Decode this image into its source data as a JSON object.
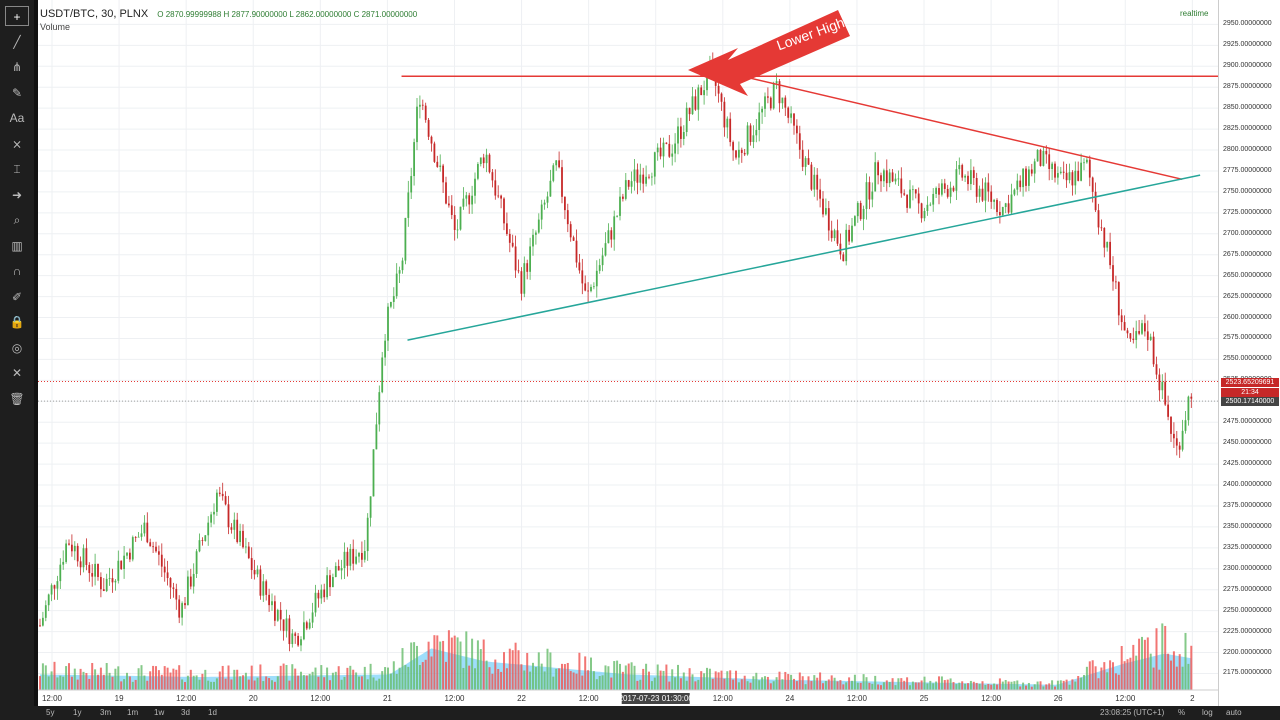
{
  "header": {
    "symbol": "USDT/BTC, 30, PLNX",
    "ohlc": "O 2870.99999988 H 2877.90000000 L 2862.00000000 C 2871.00000000",
    "volume_label": "Volume",
    "realtime_label": "realtime"
  },
  "annotation": {
    "text": "Lower High",
    "color": "#e53935"
  },
  "price_labels": {
    "current": "2523.65209691",
    "countdown": "21:34",
    "crosshair": "2500.17140000"
  },
  "bottom": {
    "ranges": [
      "5y",
      "1y",
      "3m",
      "1m",
      "1w",
      "3d",
      "1d"
    ],
    "clock": "23:08:25 (UTC+1)",
    "options": [
      "%",
      "log",
      "auto"
    ]
  },
  "toolbar_icons": [
    "crosshair-icon",
    "trend-line-icon",
    "pitchfork-icon",
    "brush-icon",
    "text-icon",
    "pattern-icon",
    "measure-icon",
    "arrow-icon",
    "zoom-icon",
    "bars-icon",
    "magnet-icon",
    "pencil-icon",
    "lock-icon",
    "eye-icon",
    "wrench-icon",
    "trash-icon"
  ],
  "chart_data": {
    "type": "candlestick",
    "title": "",
    "y_ticks": [
      2175,
      2200,
      2225,
      2250,
      2275,
      2300,
      2325,
      2350,
      2375,
      2400,
      2425,
      2450,
      2475,
      2500,
      2525,
      2550,
      2575,
      2600,
      2625,
      2650,
      2675,
      2700,
      2725,
      2750,
      2775,
      2800,
      2825,
      2850,
      2875,
      2900,
      2925,
      2950
    ],
    "y_tick_format": "2950.00000000",
    "x_ticks": [
      "12:00",
      "19",
      "12:00",
      "20",
      "12:00",
      "21",
      "12:00",
      "22",
      "12:00",
      "2017-07-23 01:30:00",
      "12:00",
      "24",
      "12:00",
      "25",
      "12:00",
      "26",
      "12:00",
      "2"
    ],
    "x_range": [
      "2017-07-18 09:00",
      "2017-07-26 15:00"
    ],
    "ylim": [
      2160,
      2960
    ],
    "price_path": [
      [
        "2017-07-18 09:00",
        2225
      ],
      [
        "2017-07-18 14:00",
        2335
      ],
      [
        "2017-07-18 20:00",
        2280
      ],
      [
        "2017-07-19 03:00",
        2350
      ],
      [
        "2017-07-19 09:00",
        2250
      ],
      [
        "2017-07-19 15:00",
        2390
      ],
      [
        "2017-07-19 22:00",
        2285
      ],
      [
        "2017-07-20 04:00",
        2215
      ],
      [
        "2017-07-20 10:00",
        2290
      ],
      [
        "2017-07-20 16:00",
        2330
      ],
      [
        "2017-07-20 19:00",
        2580
      ],
      [
        "2017-07-20 22:00",
        2660
      ],
      [
        "2017-07-21 01:00",
        2870
      ],
      [
        "2017-07-21 07:00",
        2700
      ],
      [
        "2017-07-21 12:00",
        2800
      ],
      [
        "2017-07-21 18:00",
        2640
      ],
      [
        "2017-07-22 00:00",
        2780
      ],
      [
        "2017-07-22 05:00",
        2620
      ],
      [
        "2017-07-22 12:00",
        2760
      ],
      [
        "2017-07-22 19:00",
        2800
      ],
      [
        "2017-07-23 02:00",
        2895
      ],
      [
        "2017-07-23 06:00",
        2790
      ],
      [
        "2017-07-23 13:00",
        2875
      ],
      [
        "2017-07-23 19:00",
        2760
      ],
      [
        "2017-07-24 00:00",
        2680
      ],
      [
        "2017-07-24 06:00",
        2780
      ],
      [
        "2017-07-24 13:00",
        2730
      ],
      [
        "2017-07-24 20:00",
        2770
      ],
      [
        "2017-07-25 03:00",
        2730
      ],
      [
        "2017-07-25 09:00",
        2790
      ],
      [
        "2017-07-25 13:00",
        2760
      ],
      [
        "2017-07-25 17:00",
        2780
      ],
      [
        "2017-07-25 21:00",
        2660
      ],
      [
        "2017-07-26 00:00",
        2560
      ],
      [
        "2017-07-26 03:00",
        2590
      ],
      [
        "2017-07-26 08:00",
        2440
      ],
      [
        "2017-07-26 11:00",
        2530
      ]
    ],
    "volume_profile": [
      [
        "2017-07-18 09:00",
        0.3
      ],
      [
        "2017-07-19 12:00",
        0.25
      ],
      [
        "2017-07-20 20:00",
        0.3
      ],
      [
        "2017-07-21 03:00",
        0.8
      ],
      [
        "2017-07-21 12:00",
        0.55
      ],
      [
        "2017-07-22 12:00",
        0.3
      ],
      [
        "2017-07-23 12:00",
        0.2
      ],
      [
        "2017-07-24 12:00",
        0.15
      ],
      [
        "2017-07-25 12:00",
        0.1
      ],
      [
        "2017-07-25 23:00",
        0.5
      ],
      [
        "2017-07-26 06:00",
        0.7
      ],
      [
        "2017-07-26 11:00",
        0.6
      ]
    ],
    "up_color": "#4caf50",
    "down_color": "#c62828",
    "grid": true,
    "drawings": [
      {
        "type": "horizontal",
        "color": "#e53935",
        "y": 2888,
        "x_range": [
          "2017-07-20 22:00",
          "2017-07-26 16:00"
        ]
      },
      {
        "type": "trend",
        "color": "#e53935",
        "from": [
          "2017-07-23 00:00",
          2900
        ],
        "to": [
          "2017-07-26 09:00",
          2765
        ]
      },
      {
        "type": "trend",
        "color": "#26a69a",
        "from": [
          "2017-07-20 23:00",
          2573
        ],
        "to": [
          "2017-07-26 12:00",
          2770
        ]
      },
      {
        "type": "horizontal-dotted",
        "color": "#e53935",
        "y": 2523.65
      },
      {
        "type": "horizontal-dotted",
        "color": "#9e9e9e",
        "y": 2500.17
      }
    ]
  }
}
